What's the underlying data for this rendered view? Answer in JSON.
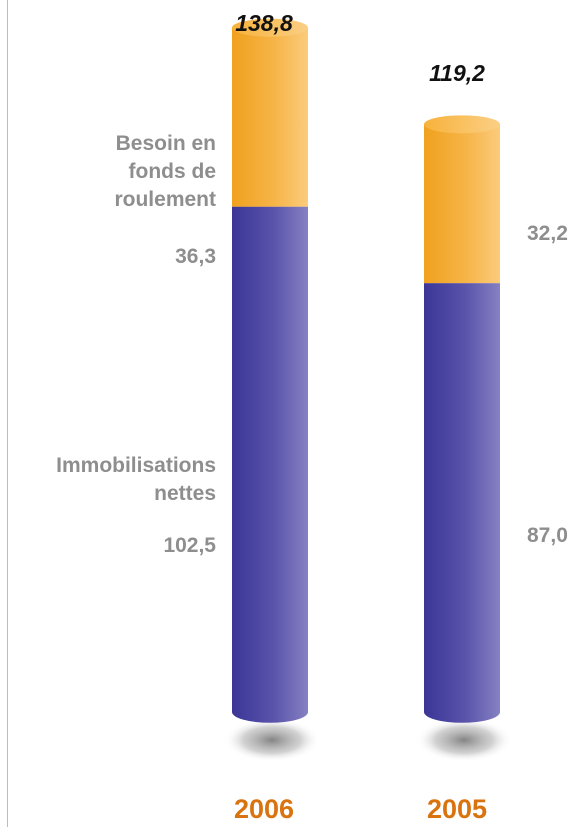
{
  "chart_data": {
    "type": "bar",
    "stacked": true,
    "categories": [
      "2006",
      "2005"
    ],
    "series": [
      {
        "name": "Immobilisations nettes",
        "values": [
          102.5,
          87.0
        ],
        "labels": [
          "102,5",
          "87,0"
        ],
        "color": "#4b44a2"
      },
      {
        "name": "Besoin en fonds de roulement",
        "values": [
          36.3,
          32.2
        ],
        "labels": [
          "36,3",
          "32,2"
        ],
        "color": "#f3a932"
      }
    ],
    "totals": [
      138.8,
      119.2
    ],
    "total_labels": [
      "138,8",
      "119,2"
    ],
    "series_label_lines": {
      "immobilisations": [
        "Immobilisations",
        "nettes"
      ],
      "bfr": [
        "Besoin en",
        "fonds de",
        "roulement"
      ]
    },
    "colors": {
      "bfr": "#f3a932",
      "immobilisations": "#4b44a2",
      "category": "#d9730f",
      "label": "#8e8e8e"
    },
    "legend": "none",
    "grid": false
  }
}
